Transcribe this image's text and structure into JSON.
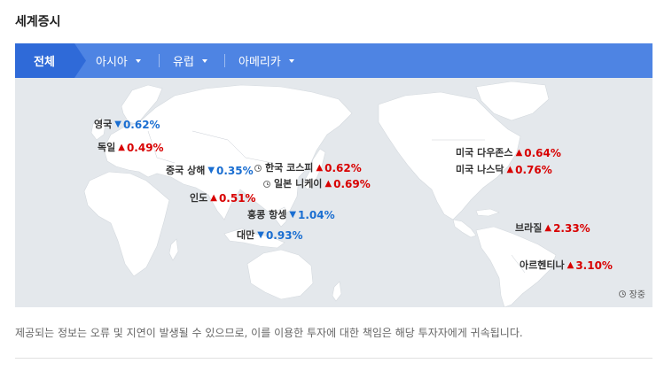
{
  "header": {
    "title": "세계증시"
  },
  "tabs": [
    {
      "label": "전체",
      "active": true
    },
    {
      "label": "아시아",
      "dropdown": true
    },
    {
      "label": "유럽",
      "dropdown": true
    },
    {
      "label": "아메리카",
      "dropdown": true
    }
  ],
  "markets": {
    "uk": {
      "name": "영국",
      "arrow": "▼",
      "value": "0.62%",
      "direction": "down"
    },
    "germany": {
      "name": "독일",
      "arrow": "▲",
      "value": "0.49%",
      "direction": "up"
    },
    "shanghai": {
      "name": "중국 상해",
      "arrow": "▼",
      "value": "0.35%",
      "direction": "down"
    },
    "kospi": {
      "name": "한국 코스피",
      "arrow": "▲",
      "value": "0.62%",
      "direction": "up",
      "closed": true
    },
    "nikkei": {
      "name": "일본 니케이",
      "arrow": "▲",
      "value": "0.69%",
      "direction": "up",
      "closed": true
    },
    "india": {
      "name": "인도",
      "arrow": "▲",
      "value": "0.51%",
      "direction": "up"
    },
    "hangseng": {
      "name": "홍콩 항셍",
      "arrow": "▼",
      "value": "1.04%",
      "direction": "down"
    },
    "taiwan": {
      "name": "대만",
      "arrow": "▼",
      "value": "0.93%",
      "direction": "down"
    },
    "dow": {
      "name": "미국 다우존스",
      "arrow": "▲",
      "value": "0.64%",
      "direction": "up"
    },
    "nasdaq": {
      "name": "미국 나스닥",
      "arrow": "▲",
      "value": "0.76%",
      "direction": "up"
    },
    "brazil": {
      "name": "브라질",
      "arrow": "▲",
      "value": "2.33%",
      "direction": "up"
    },
    "argentina": {
      "name": "아르헨티나",
      "arrow": "▲",
      "value": "3.10%",
      "direction": "up"
    }
  },
  "legend": {
    "closed_label": "장중"
  },
  "colors": {
    "up": "#d80000",
    "down": "#1a6ed1",
    "tab_bar": "#4e84e3",
    "tab_active": "#2f6ad8",
    "map_bg": "#e4e8ec",
    "land": "#ffffff"
  },
  "notice": "제공되는 정보는 오류 및 지연이 발생될 수 있으므로, 이를 이용한 투자에 대한 책임은 해당 투자자에게 귀속됩니다."
}
